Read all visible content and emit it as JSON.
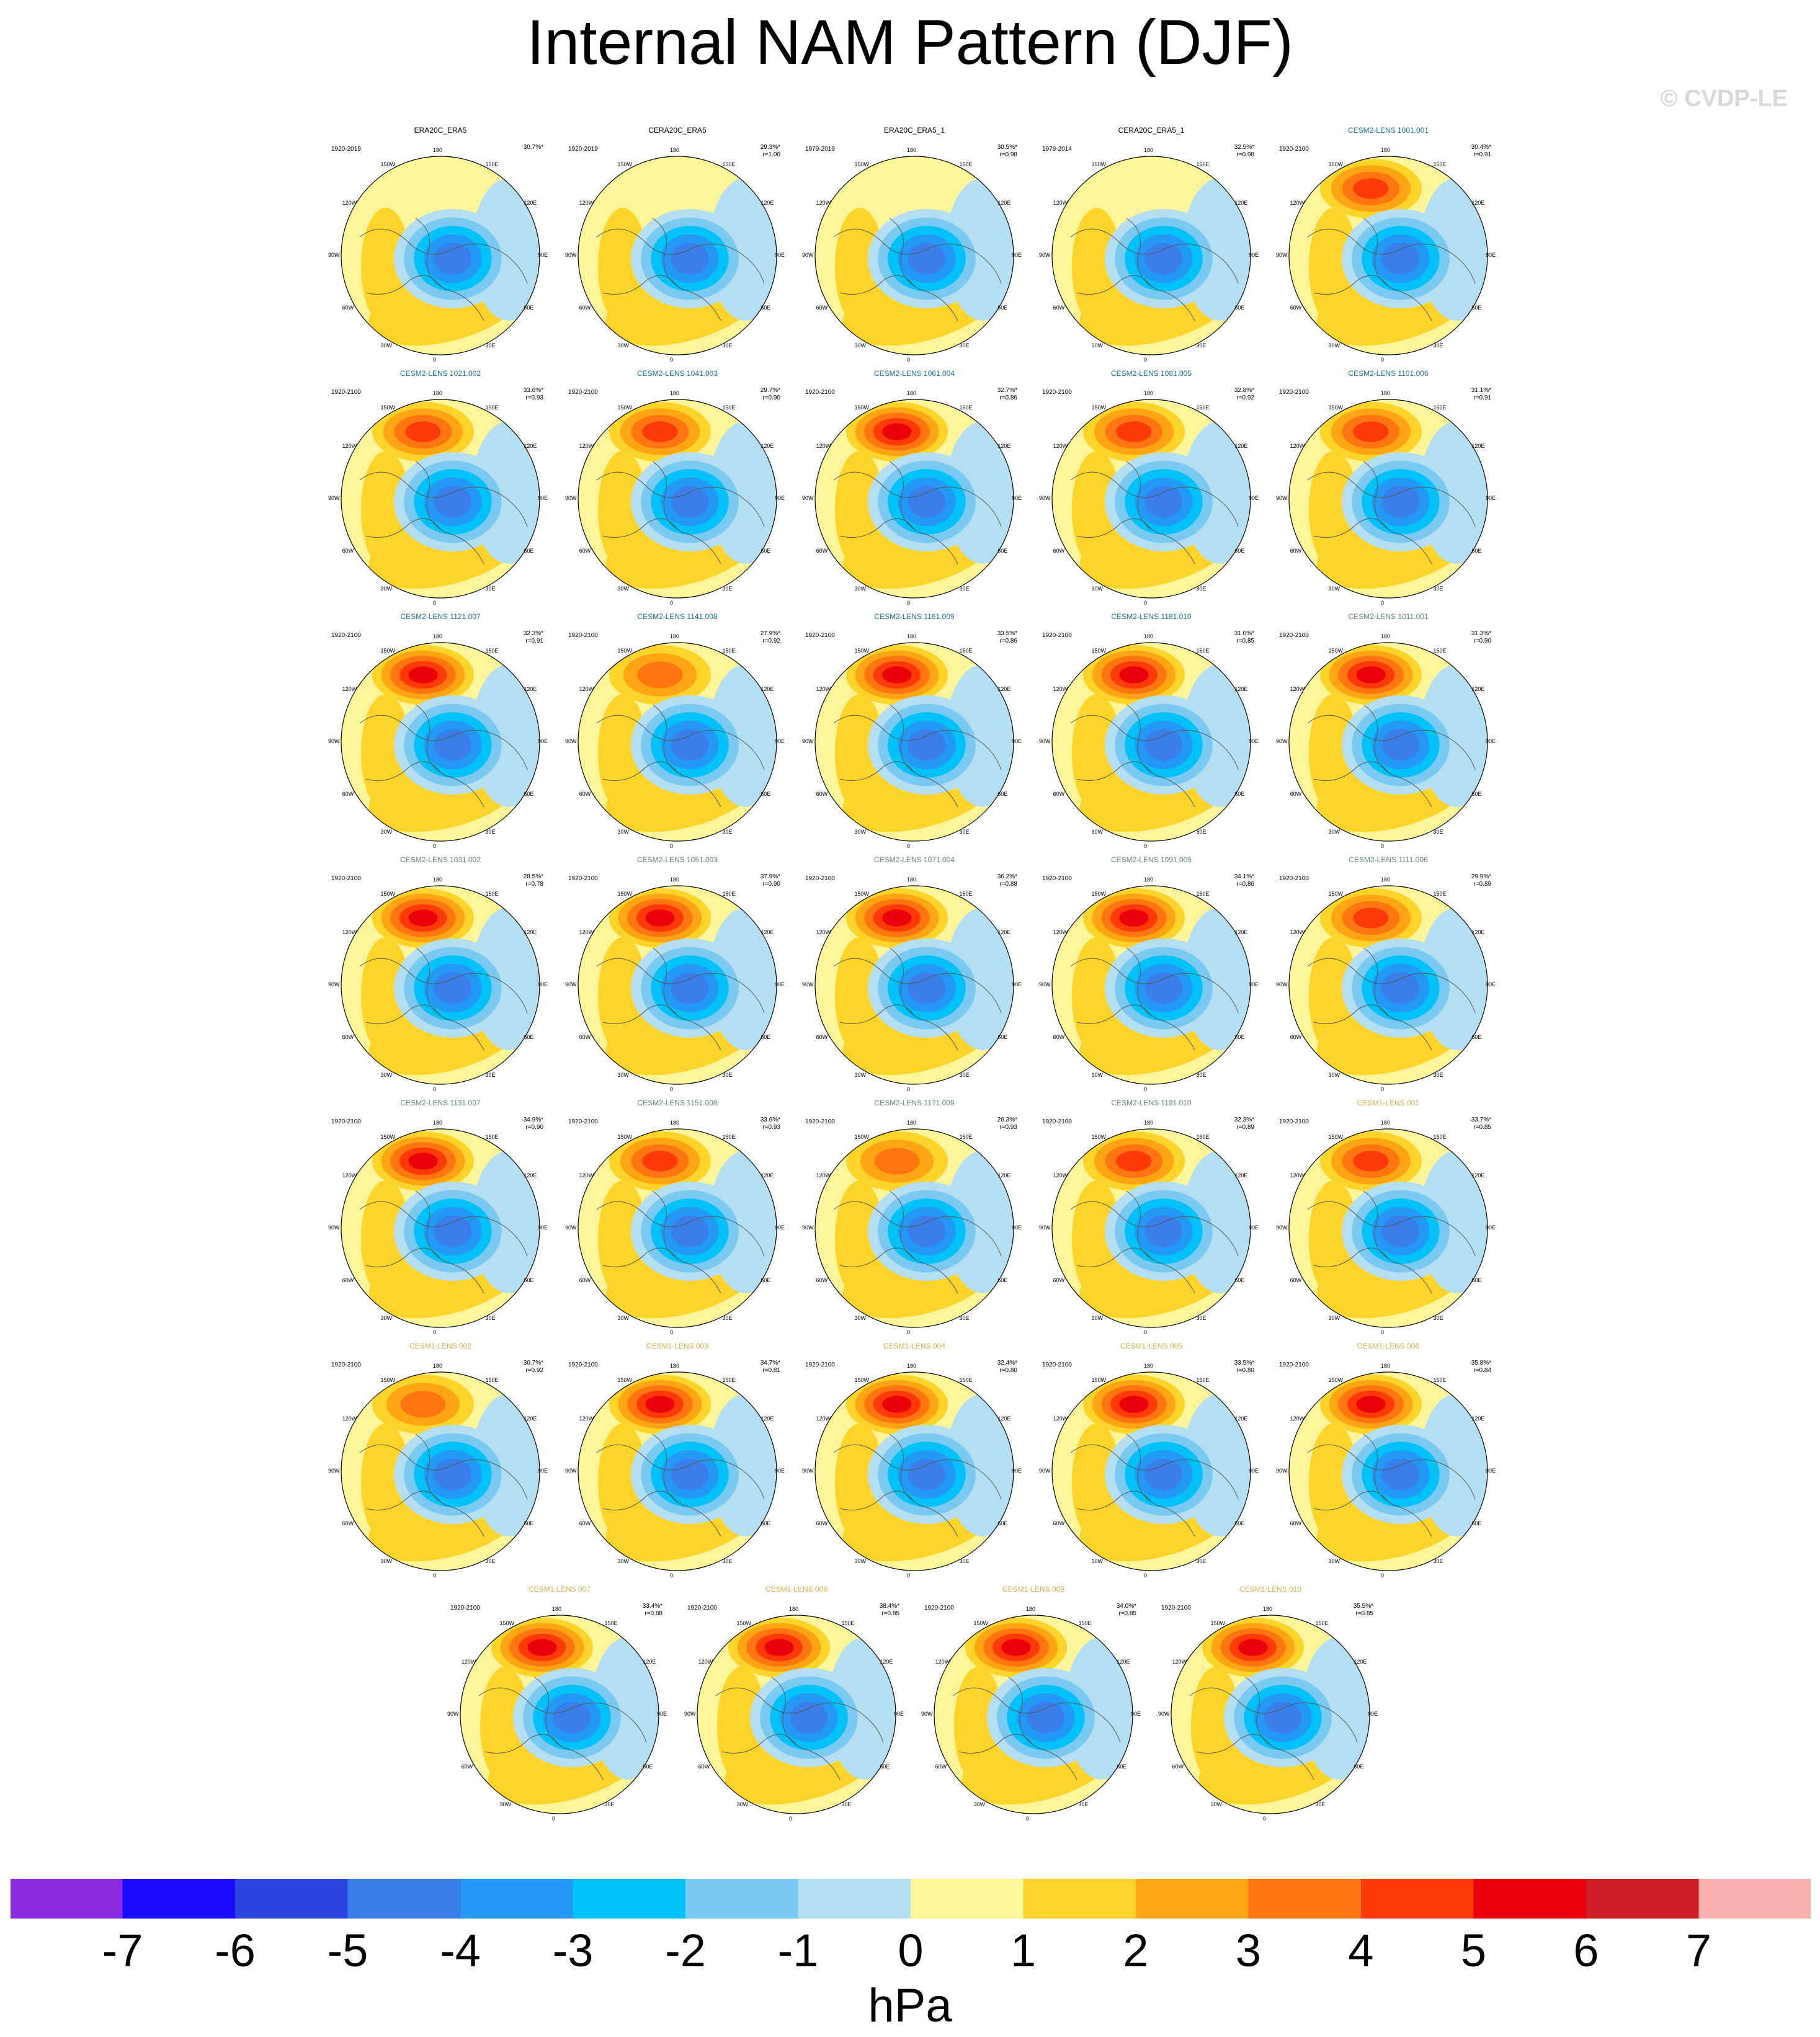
{
  "page": {
    "title": "Internal NAM Pattern (DJF)",
    "watermark": "© CVDP-LE"
  },
  "chart_data": {
    "type": "heatmap",
    "description_type": "polar-stereographic-contour-maps",
    "units": "hPa",
    "colorbar": {
      "ticks": [
        "-7",
        "-6",
        "-5",
        "-4",
        "-3",
        "-2",
        "-1",
        "0",
        "1",
        "2",
        "3",
        "4",
        "5",
        "6",
        "7"
      ],
      "colors": [
        "#8a2be2",
        "#1a0dff",
        "#2c45e0",
        "#3a7ee8",
        "#2399f5",
        "#00c1f8",
        "#7ac9f0",
        "#b4dff2",
        "#fdf59a",
        "#ffd42a",
        "#ffa514",
        "#ff7510",
        "#ff3a08",
        "#e9000b",
        "#cf1f26",
        "#fbb0b0"
      ]
    },
    "lon_labels": [
      "180",
      "150E",
      "120E",
      "90E",
      "60E",
      "30E",
      "0",
      "30W",
      "60W",
      "90W",
      "120W",
      "150W"
    ],
    "groups": {
      "observations": "#000000",
      "cesm2_a": "#1a6f9e",
      "cesm2_b": "#5f8a6a",
      "cesm1": "#d9b04a"
    },
    "panels": [
      {
        "title": "ERA20C_ERA5",
        "period": "1920-2019",
        "pct": "30.7%*",
        "r": "",
        "group": "observations",
        "pos": 0.0
      },
      {
        "title": "CERA20C_ERA5",
        "period": "1920-2019",
        "pct": "29.3%*",
        "r": "r=1.00",
        "group": "observations",
        "pos": 0.0
      },
      {
        "title": "ERA20C_ERA5_1",
        "period": "1979-2019",
        "pct": "30.5%*",
        "r": "r=0.98",
        "group": "observations",
        "pos": 0.0
      },
      {
        "title": "CERA20C_ERA5_1",
        "period": "1979-2014",
        "pct": "32.5%*",
        "r": "r=0.98",
        "group": "observations",
        "pos": 0.0
      },
      {
        "title": "CESM2-LENS 1001.001",
        "period": "1920-2100",
        "pct": "30.4%*",
        "r": "r=0.91",
        "group": "cesm2_a",
        "pos": 4.0
      },
      {
        "title": "CESM2-LENS 1021.002",
        "period": "1920-2100",
        "pct": "33.6%*",
        "r": "r=0.93",
        "group": "cesm2_a",
        "pos": 4.0
      },
      {
        "title": "CESM2-LENS 1041.003",
        "period": "1920-2100",
        "pct": "29.7%*",
        "r": "r=0.90",
        "group": "cesm2_a",
        "pos": 4.0
      },
      {
        "title": "CESM2-LENS 1061.004",
        "period": "1920-2100",
        "pct": "32.7%*",
        "r": "r=0.86",
        "group": "cesm2_a",
        "pos": 5.0
      },
      {
        "title": "CESM2-LENS 1081.005",
        "period": "1920-2100",
        "pct": "32.8%*",
        "r": "r=0.92",
        "group": "cesm2_a",
        "pos": 4.0
      },
      {
        "title": "CESM2-LENS 1101.006",
        "period": "1920-2100",
        "pct": "31.1%*",
        "r": "r=0.91",
        "group": "cesm2_a",
        "pos": 4.0
      },
      {
        "title": "CESM2-LENS 1121.007",
        "period": "1920-2100",
        "pct": "32.3%*",
        "r": "r=0.91",
        "group": "cesm2_a",
        "pos": 5.0
      },
      {
        "title": "CESM2-LENS 1141.008",
        "period": "1920-2100",
        "pct": "27.9%*",
        "r": "r=0.92",
        "group": "cesm2_a",
        "pos": 3.0
      },
      {
        "title": "CESM2-LENS 1161.009",
        "period": "1920-2100",
        "pct": "33.5%*",
        "r": "r=0.86",
        "group": "cesm2_a",
        "pos": 5.0
      },
      {
        "title": "CESM2-LENS 1181.010",
        "period": "1920-2100",
        "pct": "31.0%*",
        "r": "r=0.85",
        "group": "cesm2_a",
        "pos": 5.0
      },
      {
        "title": "CESM2-LENS 1011.001",
        "period": "1920-2100",
        "pct": "31.3%*",
        "r": "r=0.90",
        "group": "cesm2_b",
        "pos": 5.0
      },
      {
        "title": "CESM2-LENS 1031.002",
        "period": "1920-2100",
        "pct": "28.5%*",
        "r": "r=0.78",
        "group": "cesm2_b",
        "pos": 5.0
      },
      {
        "title": "CESM2-LENS 1051.003",
        "period": "1920-2100",
        "pct": "37.9%*",
        "r": "r=0.90",
        "group": "cesm2_b",
        "pos": 5.0
      },
      {
        "title": "CESM2-LENS 1071.004",
        "period": "1920-2100",
        "pct": "36.2%*",
        "r": "r=0.88",
        "group": "cesm2_b",
        "pos": 5.0
      },
      {
        "title": "CESM2-LENS 1091.005",
        "period": "1920-2100",
        "pct": "34.1%*",
        "r": "r=0.86",
        "group": "cesm2_b",
        "pos": 5.0
      },
      {
        "title": "CESM2-LENS 1111.006",
        "period": "1920-2100",
        "pct": "29.9%*",
        "r": "r=0.89",
        "group": "cesm2_b",
        "pos": 4.0
      },
      {
        "title": "CESM2-LENS 1131.007",
        "period": "1920-2100",
        "pct": "34.9%*",
        "r": "r=0.90",
        "group": "cesm2_b",
        "pos": 5.0
      },
      {
        "title": "CESM2-LENS 1151.008",
        "period": "1920-2100",
        "pct": "33.6%*",
        "r": "r=0.93",
        "group": "cesm2_b",
        "pos": 4.0
      },
      {
        "title": "CESM2-LENS 1171.009",
        "period": "1920-2100",
        "pct": "26.3%*",
        "r": "r=0.93",
        "group": "cesm2_b",
        "pos": 3.0
      },
      {
        "title": "CESM2-LENS 1191.010",
        "period": "1920-2100",
        "pct": "32.3%*",
        "r": "r=0.89",
        "group": "cesm2_b",
        "pos": 4.0
      },
      {
        "title": "CESM1-LENS 001",
        "period": "1920-2100",
        "pct": "33.7%*",
        "r": "r=0.85",
        "group": "cesm1",
        "pos": 4.0
      },
      {
        "title": "CESM1-LENS 002",
        "period": "1920-2100",
        "pct": "30.7%*",
        "r": "r=0.92",
        "group": "cesm1",
        "pos": 3.0
      },
      {
        "title": "CESM1-LENS 003",
        "period": "1920-2100",
        "pct": "34.7%*",
        "r": "r=0.81",
        "group": "cesm1",
        "pos": 5.0
      },
      {
        "title": "CESM1-LENS 004",
        "period": "1920-2100",
        "pct": "32.4%*",
        "r": "r=0.80",
        "group": "cesm1",
        "pos": 5.0
      },
      {
        "title": "CESM1-LENS 005",
        "period": "1920-2100",
        "pct": "33.5%*",
        "r": "r=0.80",
        "group": "cesm1",
        "pos": 5.0
      },
      {
        "title": "CESM1-LENS 006",
        "period": "1920-2100",
        "pct": "35.8%*",
        "r": "r=0.84",
        "group": "cesm1",
        "pos": 5.0
      },
      {
        "title": "CESM1-LENS 007",
        "period": "1920-2100",
        "pct": "33.4%*",
        "r": "r=0.88",
        "group": "cesm1",
        "pos": 5.0
      },
      {
        "title": "CESM1-LENS 008",
        "period": "1920-2100",
        "pct": "38.4%*",
        "r": "r=0.85",
        "group": "cesm1",
        "pos": 5.0
      },
      {
        "title": "CESM1-LENS 009",
        "period": "1920-2100",
        "pct": "34.0%*",
        "r": "r=0.85",
        "group": "cesm1",
        "pos": 5.0
      },
      {
        "title": "CESM1-LENS 010",
        "period": "1920-2100",
        "pct": "35.5%*",
        "r": "r=0.85",
        "group": "cesm1",
        "pos": 5.0
      }
    ]
  }
}
